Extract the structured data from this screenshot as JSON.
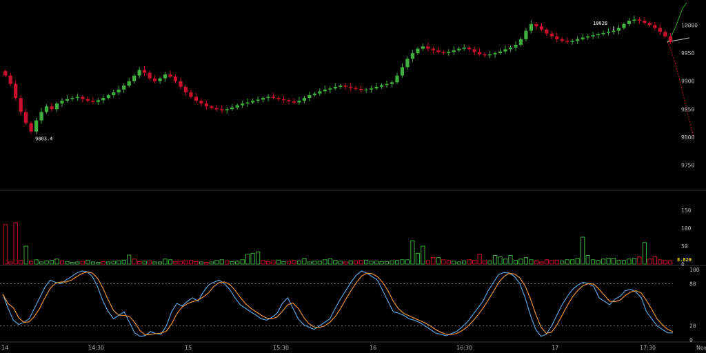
{
  "chart_data": {
    "type": "candlestick",
    "colors": {
      "up": "#3fae3f",
      "down": "#c8102e",
      "stoch_k": "#5ba3e0",
      "stoch_d": "#e8923a",
      "depth_bid": "#2ea82e",
      "depth_ask": "#c8102e",
      "volume_marker": "#f2e600",
      "separator": "#333333",
      "grid": "#2a2a2a"
    },
    "price_panel": {
      "ylim": [
        9715,
        10040
      ],
      "yticks": [
        9750,
        9800,
        9850,
        9900,
        9950,
        10000
      ],
      "annotations": {
        "low": "9803.4",
        "high": "10028"
      },
      "close": [
        9910,
        9895,
        9870,
        9845,
        9825,
        9810,
        9830,
        9845,
        9855,
        9850,
        9860,
        9865,
        9868,
        9870,
        9872,
        9868,
        9865,
        9863,
        9866,
        9870,
        9875,
        9880,
        9885,
        9892,
        9900,
        9910,
        9920,
        9915,
        9905,
        9900,
        9905,
        9912,
        9908,
        9900,
        9890,
        9880,
        9872,
        9865,
        9860,
        9855,
        9852,
        9850,
        9848,
        9850,
        9853,
        9857,
        9860,
        9862,
        9865,
        9867,
        9870,
        9872,
        9870,
        9868,
        9866,
        9864,
        9862,
        9865,
        9870,
        9875,
        9878,
        9882,
        9885,
        9887,
        9890,
        9892,
        9890,
        9888,
        9886,
        9884,
        9885,
        9887,
        9890,
        9893,
        9895,
        9898,
        9910,
        9925,
        9940,
        9950,
        9958,
        9962,
        9958,
        9955,
        9952,
        9950,
        9952,
        9955,
        9958,
        9960,
        9957,
        9952,
        9948,
        9946,
        9948,
        9950,
        9953,
        9957,
        9960,
        9965,
        9975,
        9990,
        10002,
        9998,
        9992,
        9985,
        9980,
        9975,
        9972,
        9970,
        9972,
        9975,
        9978,
        9980,
        9982,
        9984,
        9986,
        9988,
        9990,
        9995,
        10002,
        10008,
        10010,
        10008,
        10004,
        10000,
        9995,
        9988,
        9980,
        9970
      ],
      "vline_high_index": 118
    },
    "volume_panel": {
      "ylim": [
        0,
        200
      ],
      "yticks": [
        0,
        50,
        100,
        150
      ],
      "current_volume": "8.820",
      "values": [
        110,
        6,
        115,
        10,
        50,
        8,
        12,
        6,
        9,
        10,
        14,
        9,
        7,
        5,
        6,
        8,
        10,
        6,
        5,
        7,
        6,
        8,
        9,
        11,
        25,
        14,
        7,
        8,
        9,
        6,
        6,
        14,
        12,
        7,
        8,
        9,
        10,
        7,
        6,
        5,
        6,
        10,
        12,
        9,
        7,
        8,
        12,
        28,
        30,
        34,
        10,
        7,
        9,
        11,
        7,
        8,
        10,
        9,
        16,
        6,
        8,
        8,
        12,
        15,
        10,
        8,
        6,
        9,
        9,
        10,
        11,
        8,
        8,
        7,
        7,
        9,
        10,
        12,
        12,
        65,
        30,
        50,
        10,
        18,
        18,
        12,
        10,
        8,
        6,
        9,
        12,
        10,
        28,
        9,
        9,
        24,
        20,
        14,
        24,
        10,
        14,
        18,
        12,
        9,
        6,
        12,
        10,
        11,
        9,
        12,
        12,
        16,
        75,
        24,
        12,
        10,
        14,
        16,
        16,
        10,
        10,
        14,
        16,
        20,
        60,
        14,
        20,
        12,
        10,
        9
      ],
      "up": [
        0,
        0,
        0,
        0,
        1,
        0,
        1,
        1,
        1,
        1,
        1,
        0,
        1,
        1,
        1,
        0,
        1,
        1,
        1,
        0,
        1,
        1,
        1,
        1,
        1,
        0,
        0,
        1,
        0,
        1,
        1,
        1,
        1,
        0,
        0,
        0,
        0,
        0,
        1,
        0,
        1,
        1,
        1,
        0,
        1,
        1,
        1,
        1,
        1,
        1,
        0,
        0,
        0,
        1,
        1,
        0,
        0,
        1,
        1,
        1,
        1,
        1,
        1,
        1,
        1,
        1,
        0,
        1,
        0,
        0,
        1,
        1,
        1,
        1,
        1,
        1,
        1,
        1,
        1,
        1,
        1,
        1,
        0,
        0,
        1,
        0,
        0,
        1,
        1,
        1,
        0,
        0,
        0,
        0,
        1,
        1,
        1,
        1,
        1,
        1,
        1,
        1,
        1,
        0,
        0,
        0,
        0,
        0,
        1,
        1,
        1,
        1,
        1,
        1,
        1,
        1,
        1,
        1,
        1,
        1,
        1,
        1,
        1,
        0,
        1,
        0,
        0,
        0,
        0,
        0
      ]
    },
    "stoch_panel": {
      "ylim": [
        0,
        100
      ],
      "yticks": [
        0,
        20,
        80,
        100
      ],
      "dashed_levels": [
        20,
        80
      ],
      "k": [
        65,
        45,
        28,
        22,
        25,
        30,
        45,
        60,
        75,
        85,
        82,
        80,
        85,
        90,
        95,
        98,
        97,
        90,
        75,
        55,
        40,
        30,
        35,
        40,
        25,
        10,
        5,
        6,
        12,
        9,
        8,
        20,
        40,
        52,
        48,
        55,
        60,
        55,
        68,
        78,
        82,
        85,
        80,
        72,
        60,
        50,
        45,
        40,
        35,
        30,
        28,
        32,
        38,
        52,
        60,
        45,
        30,
        22,
        18,
        15,
        20,
        25,
        30,
        45,
        58,
        70,
        82,
        92,
        98,
        95,
        90,
        85,
        70,
        55,
        40,
        38,
        35,
        30,
        28,
        25,
        20,
        15,
        10,
        8,
        6,
        9,
        12,
        18,
        25,
        35,
        45,
        55,
        70,
        82,
        93,
        96,
        95,
        90,
        80,
        60,
        35,
        15,
        5,
        8,
        20,
        35,
        50,
        62,
        72,
        78,
        82,
        80,
        76,
        60,
        55,
        50,
        58,
        62,
        70,
        72,
        68,
        60,
        40,
        30,
        20,
        15,
        10,
        10
      ]
    },
    "time_axis": [
      "14",
      "14:30",
      "15",
      "15:30",
      "16",
      "16:30",
      "17",
      "17:30",
      "Now"
    ]
  }
}
